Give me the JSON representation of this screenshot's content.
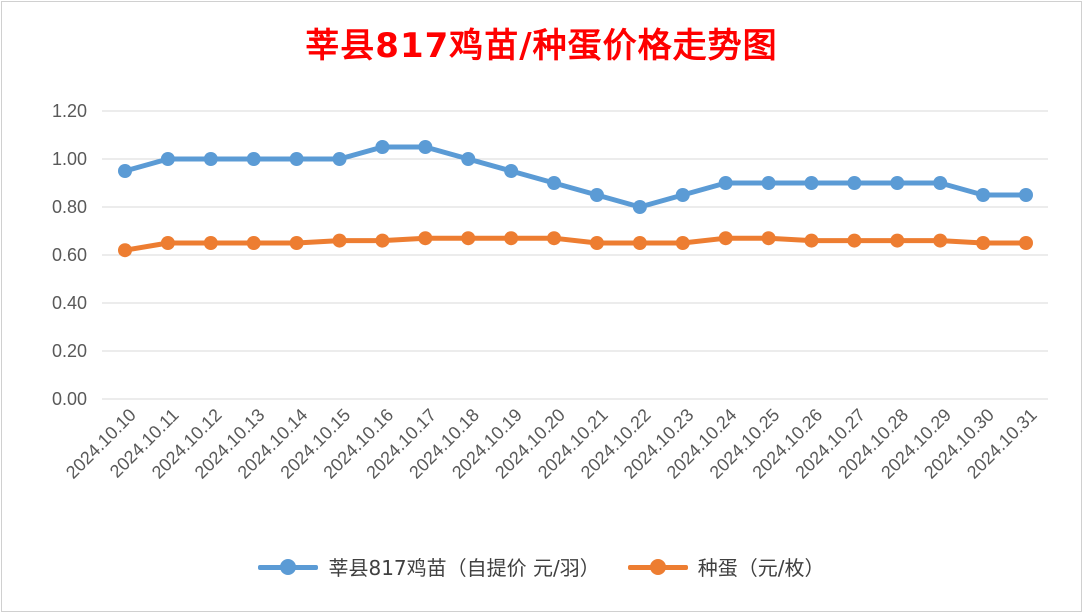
{
  "chart_data": {
    "type": "line",
    "title": "莘县817鸡苗/种蛋价格走势图",
    "categories": [
      "2024.10.10",
      "2024.10.11",
      "2024.10.12",
      "2024.10.13",
      "2024.10.14",
      "2024.10.15",
      "2024.10.16",
      "2024.10.17",
      "2024.10.18",
      "2024.10.19",
      "2024.10.20",
      "2024.10.21",
      "2024.10.22",
      "2024.10.23",
      "2024.10.24",
      "2024.10.25",
      "2024.10.26",
      "2024.10.27",
      "2024.10.28",
      "2024.10.29",
      "2024.10.30",
      "2024.10.31"
    ],
    "ylim": [
      0,
      1.2
    ],
    "yticks": [
      "0.00",
      "0.20",
      "0.40",
      "0.60",
      "0.80",
      "1.00",
      "1.20"
    ],
    "grid": true,
    "legend_position": "bottom",
    "series": [
      {
        "name": "莘县817鸡苗（自提价 元/羽）",
        "color": "#5b9bd5",
        "values": [
          0.95,
          1.0,
          1.0,
          1.0,
          1.0,
          1.0,
          1.05,
          1.05,
          1.0,
          0.95,
          0.9,
          0.85,
          0.8,
          0.85,
          0.9,
          0.9,
          0.9,
          0.9,
          0.9,
          0.9,
          0.85,
          0.85
        ]
      },
      {
        "name": "种蛋（元/枚）",
        "color": "#ed7d31",
        "values": [
          0.62,
          0.65,
          0.65,
          0.65,
          0.65,
          0.66,
          0.66,
          0.67,
          0.67,
          0.67,
          0.67,
          0.65,
          0.65,
          0.65,
          0.67,
          0.67,
          0.66,
          0.66,
          0.66,
          0.66,
          0.65,
          0.65
        ]
      }
    ]
  }
}
